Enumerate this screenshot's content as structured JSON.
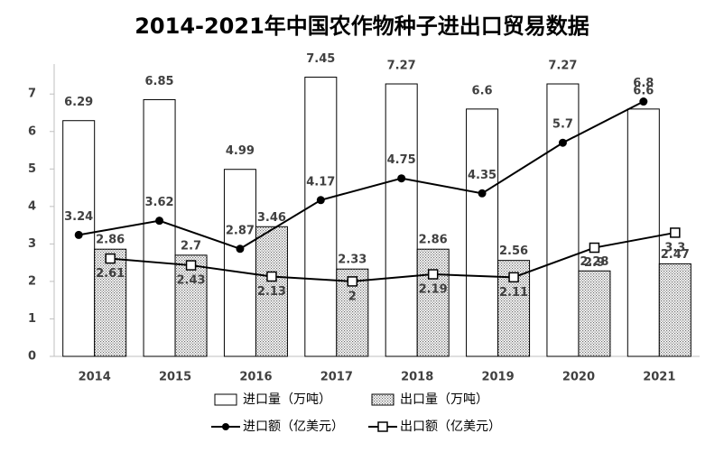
{
  "chart_data": {
    "type": "combo",
    "title": "2014-2021年中国农作物种子进出口贸易数据",
    "categories": [
      "2014",
      "2015",
      "2016",
      "2017",
      "2018",
      "2019",
      "2020",
      "2021"
    ],
    "series": [
      {
        "name": "进口量（万吨）",
        "type": "bar",
        "color": "#ffffff",
        "values": [
          6.29,
          6.85,
          4.99,
          7.45,
          7.27,
          6.6,
          7.27,
          6.6
        ]
      },
      {
        "name": "出口量（万吨）",
        "type": "bar",
        "color": "#6b6b6b",
        "pattern": "dots",
        "values": [
          2.86,
          2.7,
          3.46,
          2.33,
          2.86,
          2.56,
          2.28,
          2.47
        ]
      },
      {
        "name": "进口额（亿美元）",
        "type": "line",
        "color": "#000000",
        "marker": "circle",
        "values": [
          3.24,
          3.62,
          2.87,
          4.17,
          4.75,
          4.35,
          5.7,
          6.8
        ]
      },
      {
        "name": "出口额（亿美元）",
        "type": "line",
        "color": "#000000",
        "marker": "square",
        "values": [
          2.61,
          2.43,
          2.13,
          2,
          2.19,
          2.11,
          2.9,
          3.3
        ]
      }
    ],
    "ylim": [
      0,
      7.8
    ],
    "yticks": [
      0,
      1,
      2,
      3,
      4,
      5,
      6,
      7
    ],
    "grid": false,
    "legend": "bottom"
  }
}
